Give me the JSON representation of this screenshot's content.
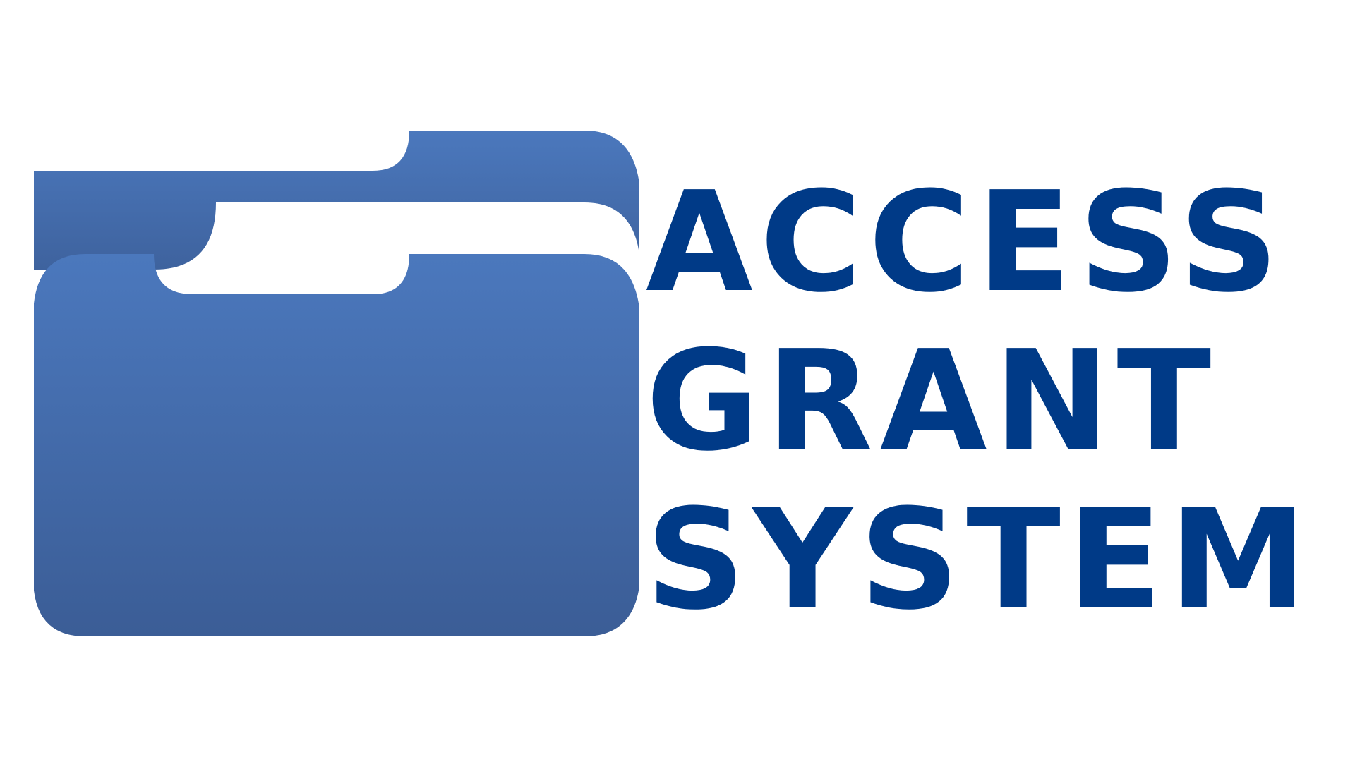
{
  "logo": {
    "lines": [
      "ACCESS",
      "GRANT",
      "SYSTEM"
    ],
    "text_color": "#003a87",
    "folder_color_top": "#4b78bd",
    "folder_color_bottom": "#3b5d96",
    "icon": "folder-icon"
  }
}
